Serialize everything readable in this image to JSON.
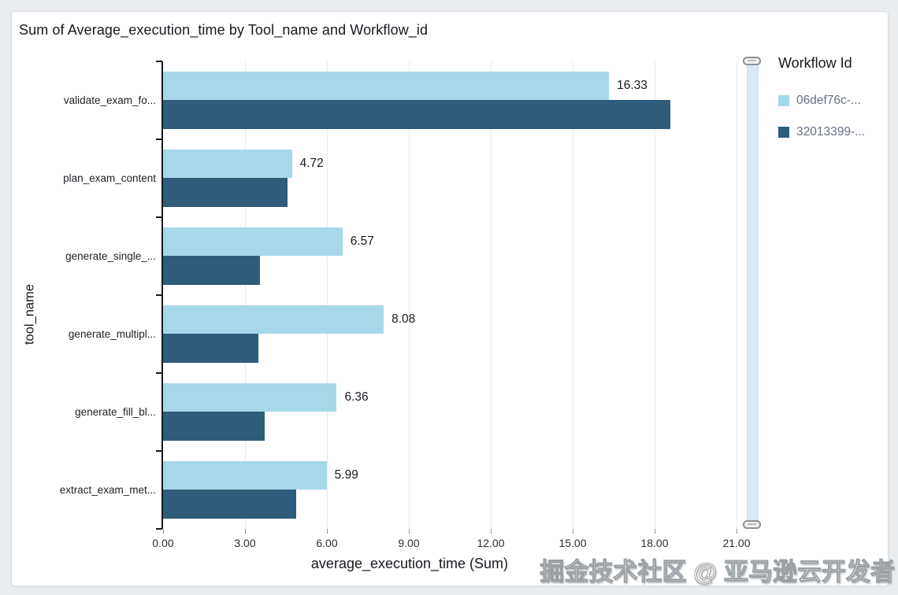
{
  "title": "Sum of Average_execution_time by Tool_name and Workflow_id",
  "watermark": "掘金技术社区 @ 亚马逊云开发者",
  "legend": {
    "title": "Workflow Id",
    "items": [
      {
        "label": "06def76c-...",
        "color": "#a7d8e9"
      },
      {
        "label": "32013399-...",
        "color": "#2f5c7b"
      }
    ]
  },
  "chart_data": {
    "type": "bar",
    "orientation": "horizontal",
    "title": "Sum of Average_execution_time by Tool_name and Workflow_id",
    "xlabel": "average_execution_time (Sum)",
    "ylabel": "tool_name",
    "xlim": [
      0,
      21.72
    ],
    "xticks": [
      0,
      3,
      6,
      9,
      12,
      15,
      18,
      21
    ],
    "xtick_labels": [
      "0.00",
      "3.00",
      "6.00",
      "9.00",
      "12.00",
      "15.00",
      "18.00",
      "21.00"
    ],
    "grid": true,
    "legend_position": "right",
    "categories": [
      "validate_exam_fo...",
      "plan_exam_content",
      "generate_single_...",
      "generate_multipl...",
      "generate_fill_bl...",
      "extract_exam_met..."
    ],
    "series": [
      {
        "name": "06def76c-...",
        "color": "#a7d8e9",
        "values": [
          16.33,
          4.72,
          6.57,
          8.08,
          6.36,
          5.99
        ],
        "labels": [
          "16.33",
          "4.72",
          "6.57",
          "8.08",
          "6.36",
          "5.99"
        ],
        "labels_shown": true
      },
      {
        "name": "32013399-...",
        "color": "#2f5c7b",
        "values": [
          18.58,
          4.55,
          3.55,
          3.49,
          3.72,
          4.87
        ],
        "labels": [],
        "labels_shown": false
      }
    ]
  }
}
